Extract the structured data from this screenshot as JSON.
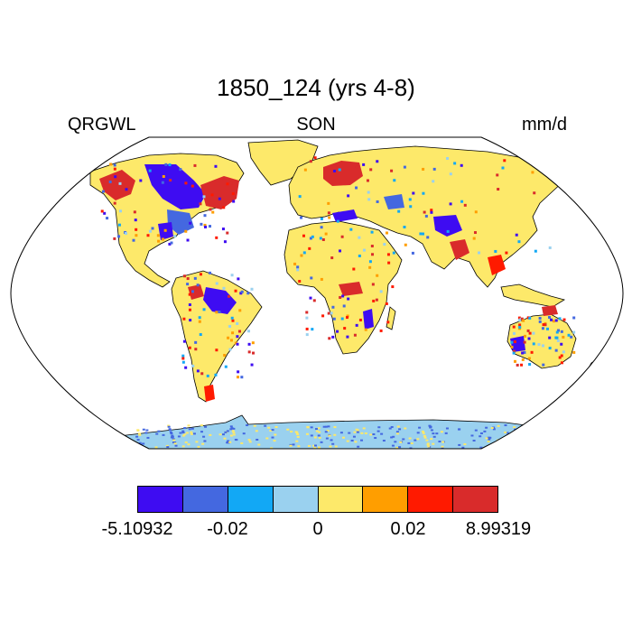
{
  "title": "1850_124 (yrs 4-8)",
  "left_label": "QRGWL",
  "center_label": "SON",
  "right_label": "mm/d",
  "colorbar": {
    "colors": [
      "#3e0cf2",
      "#4468e0",
      "#12a8f5",
      "#9ad1ef",
      "#fde96a",
      "#ff9e00",
      "#ff1a00",
      "#d92b2b"
    ],
    "labels": [
      "-5.10932",
      "-0.02",
      "0",
      "0.02",
      "8.99319"
    ]
  },
  "palette": {
    "ocean": "#ffffff",
    "land_base": "#fde96a",
    "antarctica": "#9ad1ef",
    "coast": "#000000"
  }
}
